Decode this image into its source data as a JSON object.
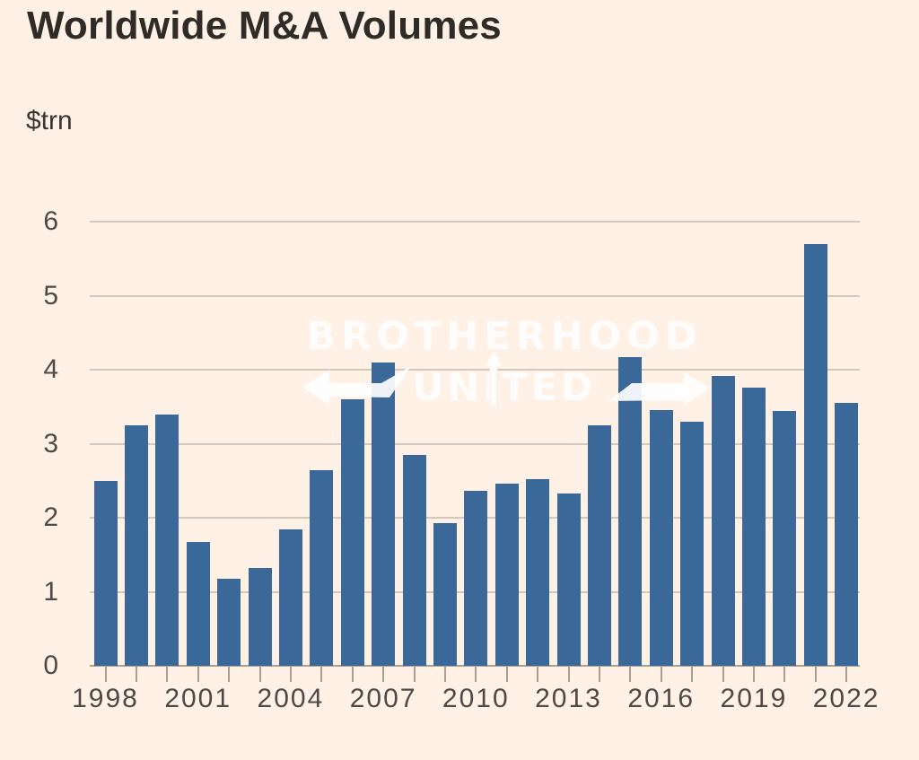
{
  "page": {
    "title": "Worldwide M&A Volumes",
    "unit_label": "$trn"
  },
  "watermark": {
    "line1": "BROTHERHOOD",
    "line2": "UNITED",
    "icons": [
      "left-arrow-icon",
      "up-arrow-icon",
      "right-arrow-icon"
    ]
  },
  "colors": {
    "background": "#FFF1E5",
    "bar": "#3A6898",
    "gridline": "#D4C8BA",
    "axis_line": "#A99F93",
    "title_text": "#2F2C28",
    "axis_text": "#4E4944",
    "watermark_text": "#FFFFFF"
  },
  "chart_data": {
    "type": "bar",
    "title": "Worldwide M&A Volumes",
    "subtitle": "",
    "xlabel": "",
    "ylabel": "$trn",
    "ylim": [
      0,
      6
    ],
    "yticks": [
      0,
      1,
      2,
      3,
      4,
      5,
      6
    ],
    "grid": "horizontal",
    "legend": "none",
    "x_tick_label_step": 3,
    "x_tick_labels_shown": [
      "1998",
      "2001",
      "2004",
      "2007",
      "2010",
      "2013",
      "2016",
      "2019",
      "2022"
    ],
    "categories": [
      1998,
      1999,
      2000,
      2001,
      2002,
      2003,
      2004,
      2005,
      2006,
      2007,
      2008,
      2009,
      2010,
      2011,
      2012,
      2013,
      2014,
      2015,
      2016,
      2017,
      2018,
      2019,
      2020,
      2021,
      2022
    ],
    "values": [
      2.5,
      3.25,
      3.4,
      1.67,
      1.18,
      1.32,
      1.85,
      2.65,
      3.6,
      4.1,
      2.85,
      1.93,
      2.37,
      2.46,
      2.52,
      2.33,
      3.25,
      4.17,
      3.46,
      3.3,
      3.92,
      3.76,
      3.45,
      5.7,
      3.55
    ]
  }
}
